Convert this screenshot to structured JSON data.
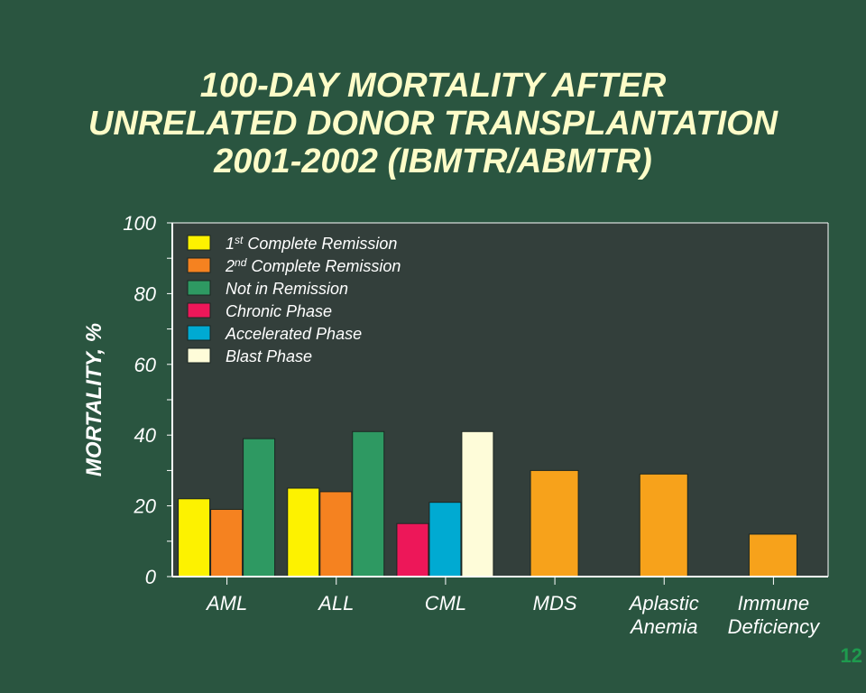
{
  "title_lines": [
    "100-DAY MORTALITY AFTER",
    "UNRELATED DONOR TRANSPLANTATION",
    "2001-2002 (IBMTR/ABMTR)"
  ],
  "slide_number": "12",
  "colors": {
    "background": "#2a5540",
    "plot_area": "#333f3b",
    "first_cr": "#fdf200",
    "second_cr": "#f58220",
    "not_in_remission": "#2e9962",
    "chronic_phase": "#ed1759",
    "accelerated_phase": "#00aad2",
    "blast_phase": "#fefcd9",
    "single": "#f7a21b"
  },
  "chart_data": {
    "type": "bar",
    "ylabel": "MORTALITY, %",
    "xlabel": "",
    "ylim": [
      0,
      100
    ],
    "yticks": [
      0,
      20,
      40,
      60,
      80,
      100
    ],
    "grid": false,
    "legend_position": "top-left",
    "legend": [
      {
        "key": "first_cr",
        "pre": "1",
        "sup": "st",
        "text": " Complete Remission"
      },
      {
        "key": "second_cr",
        "pre": "2",
        "sup": "nd",
        "text": " Complete Remission"
      },
      {
        "key": "not_in_remission",
        "pre": "Not in Remission",
        "sup": "",
        "text": ""
      },
      {
        "key": "chronic_phase",
        "pre": "Chronic Phase",
        "sup": "",
        "text": ""
      },
      {
        "key": "accelerated_phase",
        "pre": "Accelerated Phase",
        "sup": "",
        "text": ""
      },
      {
        "key": "blast_phase",
        "pre": "Blast Phase",
        "sup": "",
        "text": ""
      }
    ],
    "categories": [
      {
        "lines": [
          "AML"
        ],
        "bars": [
          {
            "key": "first_cr",
            "value": 22
          },
          {
            "key": "second_cr",
            "value": 19
          },
          {
            "key": "not_in_remission",
            "value": 39
          }
        ]
      },
      {
        "lines": [
          "ALL"
        ],
        "bars": [
          {
            "key": "first_cr",
            "value": 25
          },
          {
            "key": "second_cr",
            "value": 24
          },
          {
            "key": "not_in_remission",
            "value": 41
          }
        ]
      },
      {
        "lines": [
          "CML"
        ],
        "bars": [
          {
            "key": "chronic_phase",
            "value": 15
          },
          {
            "key": "accelerated_phase",
            "value": 21
          },
          {
            "key": "blast_phase",
            "value": 41
          }
        ]
      },
      {
        "lines": [
          "MDS"
        ],
        "bars": [
          {
            "key": "single",
            "value": 30
          }
        ]
      },
      {
        "lines": [
          "Aplastic",
          "Anemia"
        ],
        "bars": [
          {
            "key": "single",
            "value": 29
          }
        ]
      },
      {
        "lines": [
          "Immune",
          "Deficiency"
        ],
        "bars": [
          {
            "key": "single",
            "value": 12
          }
        ]
      }
    ]
  }
}
